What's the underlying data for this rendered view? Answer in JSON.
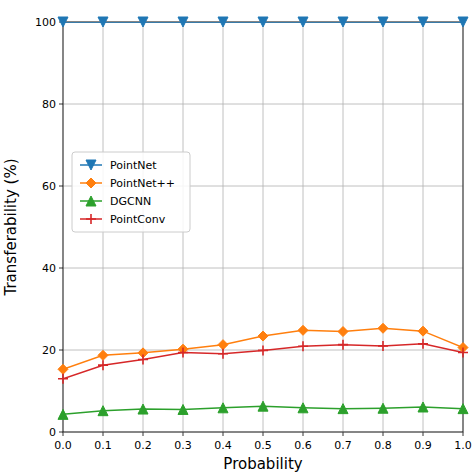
{
  "chart_data": {
    "type": "line",
    "x_label": "Probability",
    "y_label": "Transferability (%)",
    "x": [
      0.0,
      0.1,
      0.2,
      0.3,
      0.4,
      0.5,
      0.6,
      0.7,
      0.8,
      0.9,
      1.0
    ],
    "xlim": [
      0,
      1
    ],
    "ylim": [
      0,
      100
    ],
    "xticks": [
      {
        "value": 0,
        "label": "0.0"
      },
      {
        "value": 0.1,
        "label": "0.1"
      },
      {
        "value": 0.2,
        "label": "0.2"
      },
      {
        "value": 0.3,
        "label": "0.3"
      },
      {
        "value": 0.4,
        "label": "0.4"
      },
      {
        "value": 0.5,
        "label": "0.5"
      },
      {
        "value": 0.6,
        "label": "0.6"
      },
      {
        "value": 0.7,
        "label": "0.7"
      },
      {
        "value": 0.8,
        "label": "0.8"
      },
      {
        "value": 0.9,
        "label": "0.9"
      },
      {
        "value": 1,
        "label": "1.0"
      }
    ],
    "yticks": [
      0,
      20,
      40,
      60,
      80,
      100
    ],
    "grid": true,
    "legend": "center left",
    "series": [
      {
        "name": "PointNet",
        "color": "#1f77b4",
        "marker": "triangle_down",
        "line_style": "solid",
        "values": [
          100,
          100,
          100,
          100,
          100,
          100,
          100,
          100,
          100,
          100,
          100
        ]
      },
      {
        "name": "PointNet++",
        "color": "#ff7f0e",
        "marker": "diamond",
        "line_style": "solid",
        "values": [
          15.3,
          18.7,
          19.3,
          20.2,
          21.3,
          23.4,
          24.8,
          24.5,
          25.3,
          24.6,
          20.6
        ]
      },
      {
        "name": "DGCNN",
        "color": "#2ca02c",
        "marker": "triangle_up",
        "line_style": "solid",
        "values": [
          4.3,
          5.2,
          5.6,
          5.5,
          5.9,
          6.3,
          5.9,
          5.7,
          5.8,
          6.1,
          5.7
        ]
      },
      {
        "name": "PointConv",
        "color": "#d62728",
        "marker": "plus",
        "line_style": "solid",
        "values": [
          13.0,
          16.3,
          17.7,
          19.4,
          19.1,
          19.9,
          20.9,
          21.3,
          21.0,
          21.5,
          19.4
        ]
      }
    ]
  }
}
